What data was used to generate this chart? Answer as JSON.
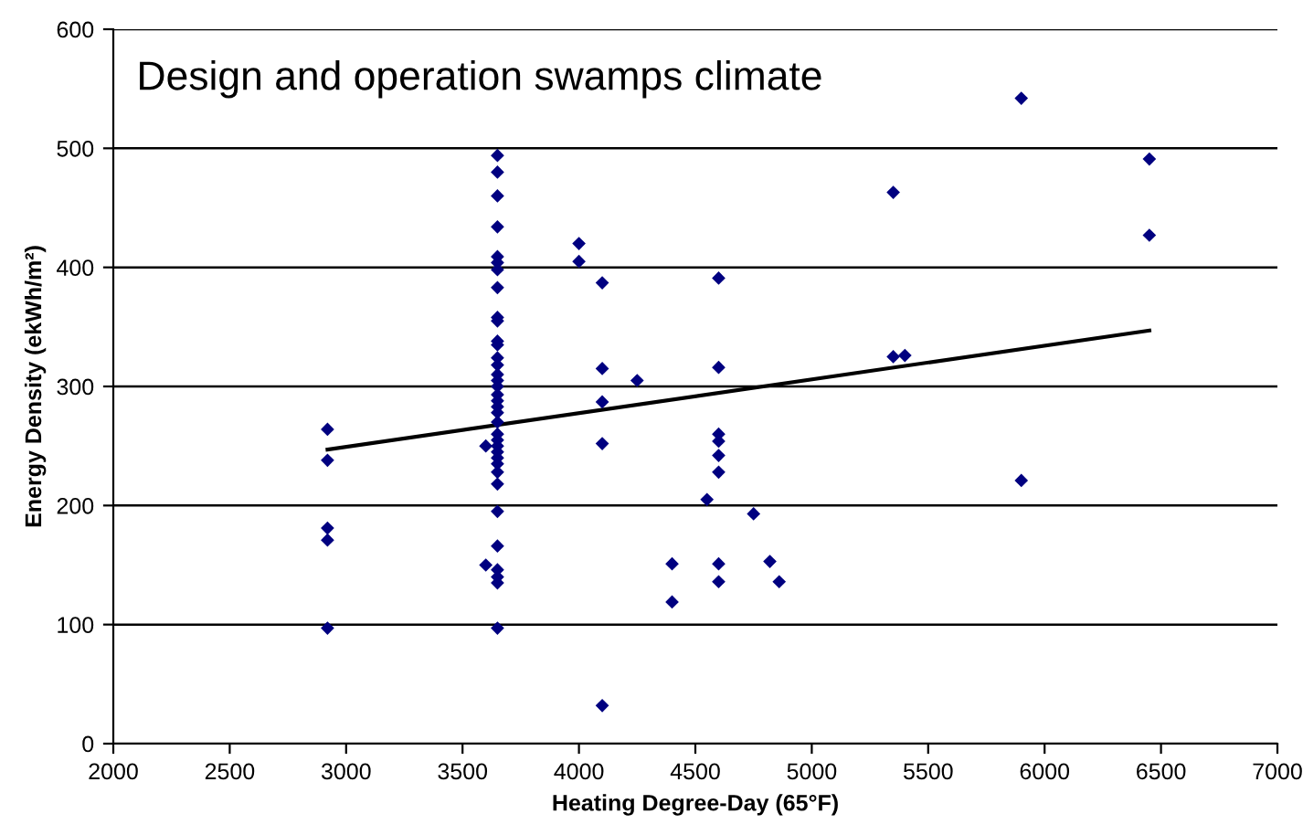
{
  "chart_data": {
    "type": "scatter",
    "title": "Design and operation swamps climate",
    "xlabel": "Heating Degree-Day (65°F)",
    "ylabel": "Energy Density (ekWh/m²)",
    "series": [
      {
        "color": "#000080",
        "marker": "diamond",
        "x": [
          2920,
          2920,
          2920,
          2920,
          2920,
          3650,
          3650,
          3650,
          3650,
          3650,
          3650,
          3650,
          3650,
          3650,
          3650,
          3650,
          3650,
          3650,
          3650,
          3650,
          3650,
          3650,
          3650,
          3650,
          3650,
          3650,
          3650,
          3650,
          3650,
          3650,
          3650,
          3650,
          3650,
          3650,
          3650,
          3650,
          3650,
          3650,
          3650,
          3650,
          3650,
          3600,
          3600,
          4000,
          4000,
          4100,
          4100,
          4100,
          4100,
          4100,
          4250,
          4400,
          4400,
          4600,
          4600,
          4600,
          4600,
          4600,
          4600,
          4600,
          4600,
          4550,
          4750,
          4820,
          4860,
          5350,
          5350,
          5400,
          5900,
          5900,
          6450,
          6450
        ],
        "values": [
          264,
          238,
          181,
          171,
          97,
          494,
          480,
          460,
          434,
          409,
          404,
          398,
          383,
          358,
          355,
          338,
          335,
          324,
          318,
          310,
          305,
          300,
          293,
          288,
          283,
          278,
          270,
          260,
          255,
          250,
          245,
          240,
          235,
          228,
          218,
          195,
          166,
          146,
          140,
          135,
          97,
          250,
          150,
          420,
          405,
          387,
          315,
          287,
          252,
          32,
          305,
          151,
          119,
          391,
          316,
          260,
          254,
          242,
          228,
          151,
          136,
          205,
          193,
          153,
          136,
          463,
          325,
          326,
          542,
          221,
          491,
          427
        ]
      },
      {
        "type": "line",
        "color": "#000000",
        "marker": "none",
        "x": [
          2920,
          6450
        ],
        "values": [
          247,
          347
        ]
      }
    ],
    "xlim": [
      2000,
      7000
    ],
    "xticks": [
      2000,
      2500,
      3000,
      3500,
      4000,
      4500,
      5000,
      5500,
      6000,
      6500,
      7000
    ],
    "ylim": [
      0,
      600
    ],
    "yticks": [
      0,
      100,
      200,
      300,
      400,
      500,
      600
    ],
    "grid": "y",
    "legend": false
  }
}
